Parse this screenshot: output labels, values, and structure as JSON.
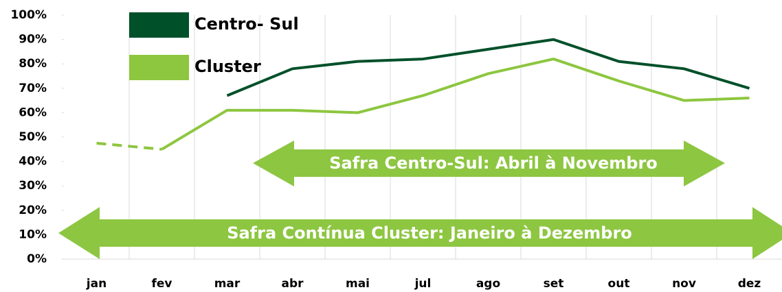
{
  "chart_data": {
    "type": "line",
    "categories": [
      "jan",
      "fev",
      "mar",
      "abr",
      "mai",
      "jul",
      "ago",
      "set",
      "out",
      "nov",
      "dez"
    ],
    "series": [
      {
        "name": "Centro- Sul",
        "color": "#00502a",
        "values": [
          null,
          null,
          67,
          78,
          81,
          82,
          86,
          90,
          81,
          78,
          70
        ]
      },
      {
        "name": "Cluster",
        "color": "#8dc63f",
        "values": [
          47.5,
          45,
          61,
          61,
          60,
          67,
          76,
          82,
          73,
          65,
          66
        ],
        "dashed_until_index": 2
      }
    ],
    "ylim": [
      0,
      100
    ],
    "yticks": [
      {
        "value": 0,
        "label": "0%"
      },
      {
        "value": 10,
        "label": "10%"
      },
      {
        "value": 20,
        "label": "20%"
      },
      {
        "value": 30,
        "label": "30%"
      },
      {
        "value": 40,
        "label": "40%"
      },
      {
        "value": 50,
        "label": "50%"
      },
      {
        "value": 60,
        "label": "60%"
      },
      {
        "value": 70,
        "label": "70%"
      },
      {
        "value": 80,
        "label": "80%"
      },
      {
        "value": 90,
        "label": "90%"
      },
      {
        "value": 100,
        "label": "100%"
      }
    ],
    "annotations": [
      "Safra Centro-Sul: Abril à Novembro",
      "Safra Contínua Cluster: Janeiro à Dezembro"
    ],
    "annotation_color": "#8dc641"
  }
}
